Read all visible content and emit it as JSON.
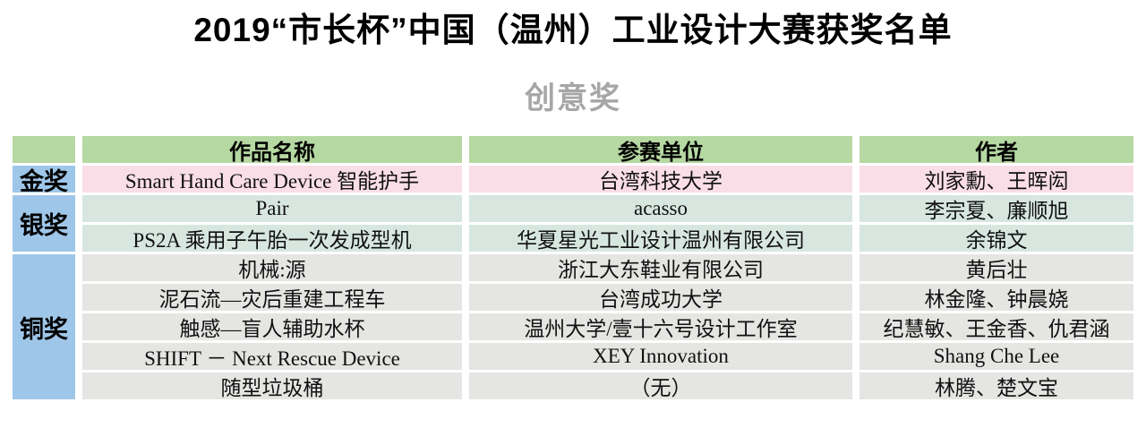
{
  "page": {
    "title": "2019“市长杯”中国（温州）工业设计大赛获奖名单",
    "subtitle": "创意奖"
  },
  "colors": {
    "header_green": "#b6d8a2",
    "label_blue": "#9ec6e8",
    "gold_pink": "#fadee7",
    "silver_teal": "#d7e7e0",
    "bronze_gray": "#e5e5e3",
    "subtitle_gray": "#a6a6a6"
  },
  "table": {
    "headers": [
      "作品名称",
      "参赛单位",
      "作者"
    ],
    "groups": [
      {
        "award": "金奖",
        "tone": "gold",
        "rows": [
          {
            "work": "Smart Hand Care Device 智能护手",
            "unit": "台湾科技大学",
            "authors": "刘家勳、王晖闳"
          }
        ]
      },
      {
        "award": "银奖",
        "tone": "silver",
        "rows": [
          {
            "work": "Pair",
            "unit": "acasso",
            "authors": "李宗夏、廉顺旭"
          },
          {
            "work": "PS2A 乘用子午胎一次发成型机",
            "unit": "华夏星光工业设计温州有限公司",
            "authors": "余锦文"
          }
        ]
      },
      {
        "award": "铜奖",
        "tone": "bronze",
        "rows": [
          {
            "work": "机械:源",
            "unit": "浙江大东鞋业有限公司",
            "authors": "黄后壮"
          },
          {
            "work": "泥石流—灾后重建工程车",
            "unit": "台湾成功大学",
            "authors": "林金隆、钟晨娆"
          },
          {
            "work": "触感—盲人辅助水杯",
            "unit": "温州大学/壹十六号设计工作室",
            "authors": "纪慧敏、王金香、仇君涵"
          },
          {
            "work": "SHIFT － Next Rescue Device",
            "unit": "XEY Innovation",
            "authors": "Shang Che Lee"
          },
          {
            "work": "随型垃圾桶",
            "unit": "（无）",
            "authors": "林腾、楚文宝"
          }
        ]
      }
    ]
  }
}
